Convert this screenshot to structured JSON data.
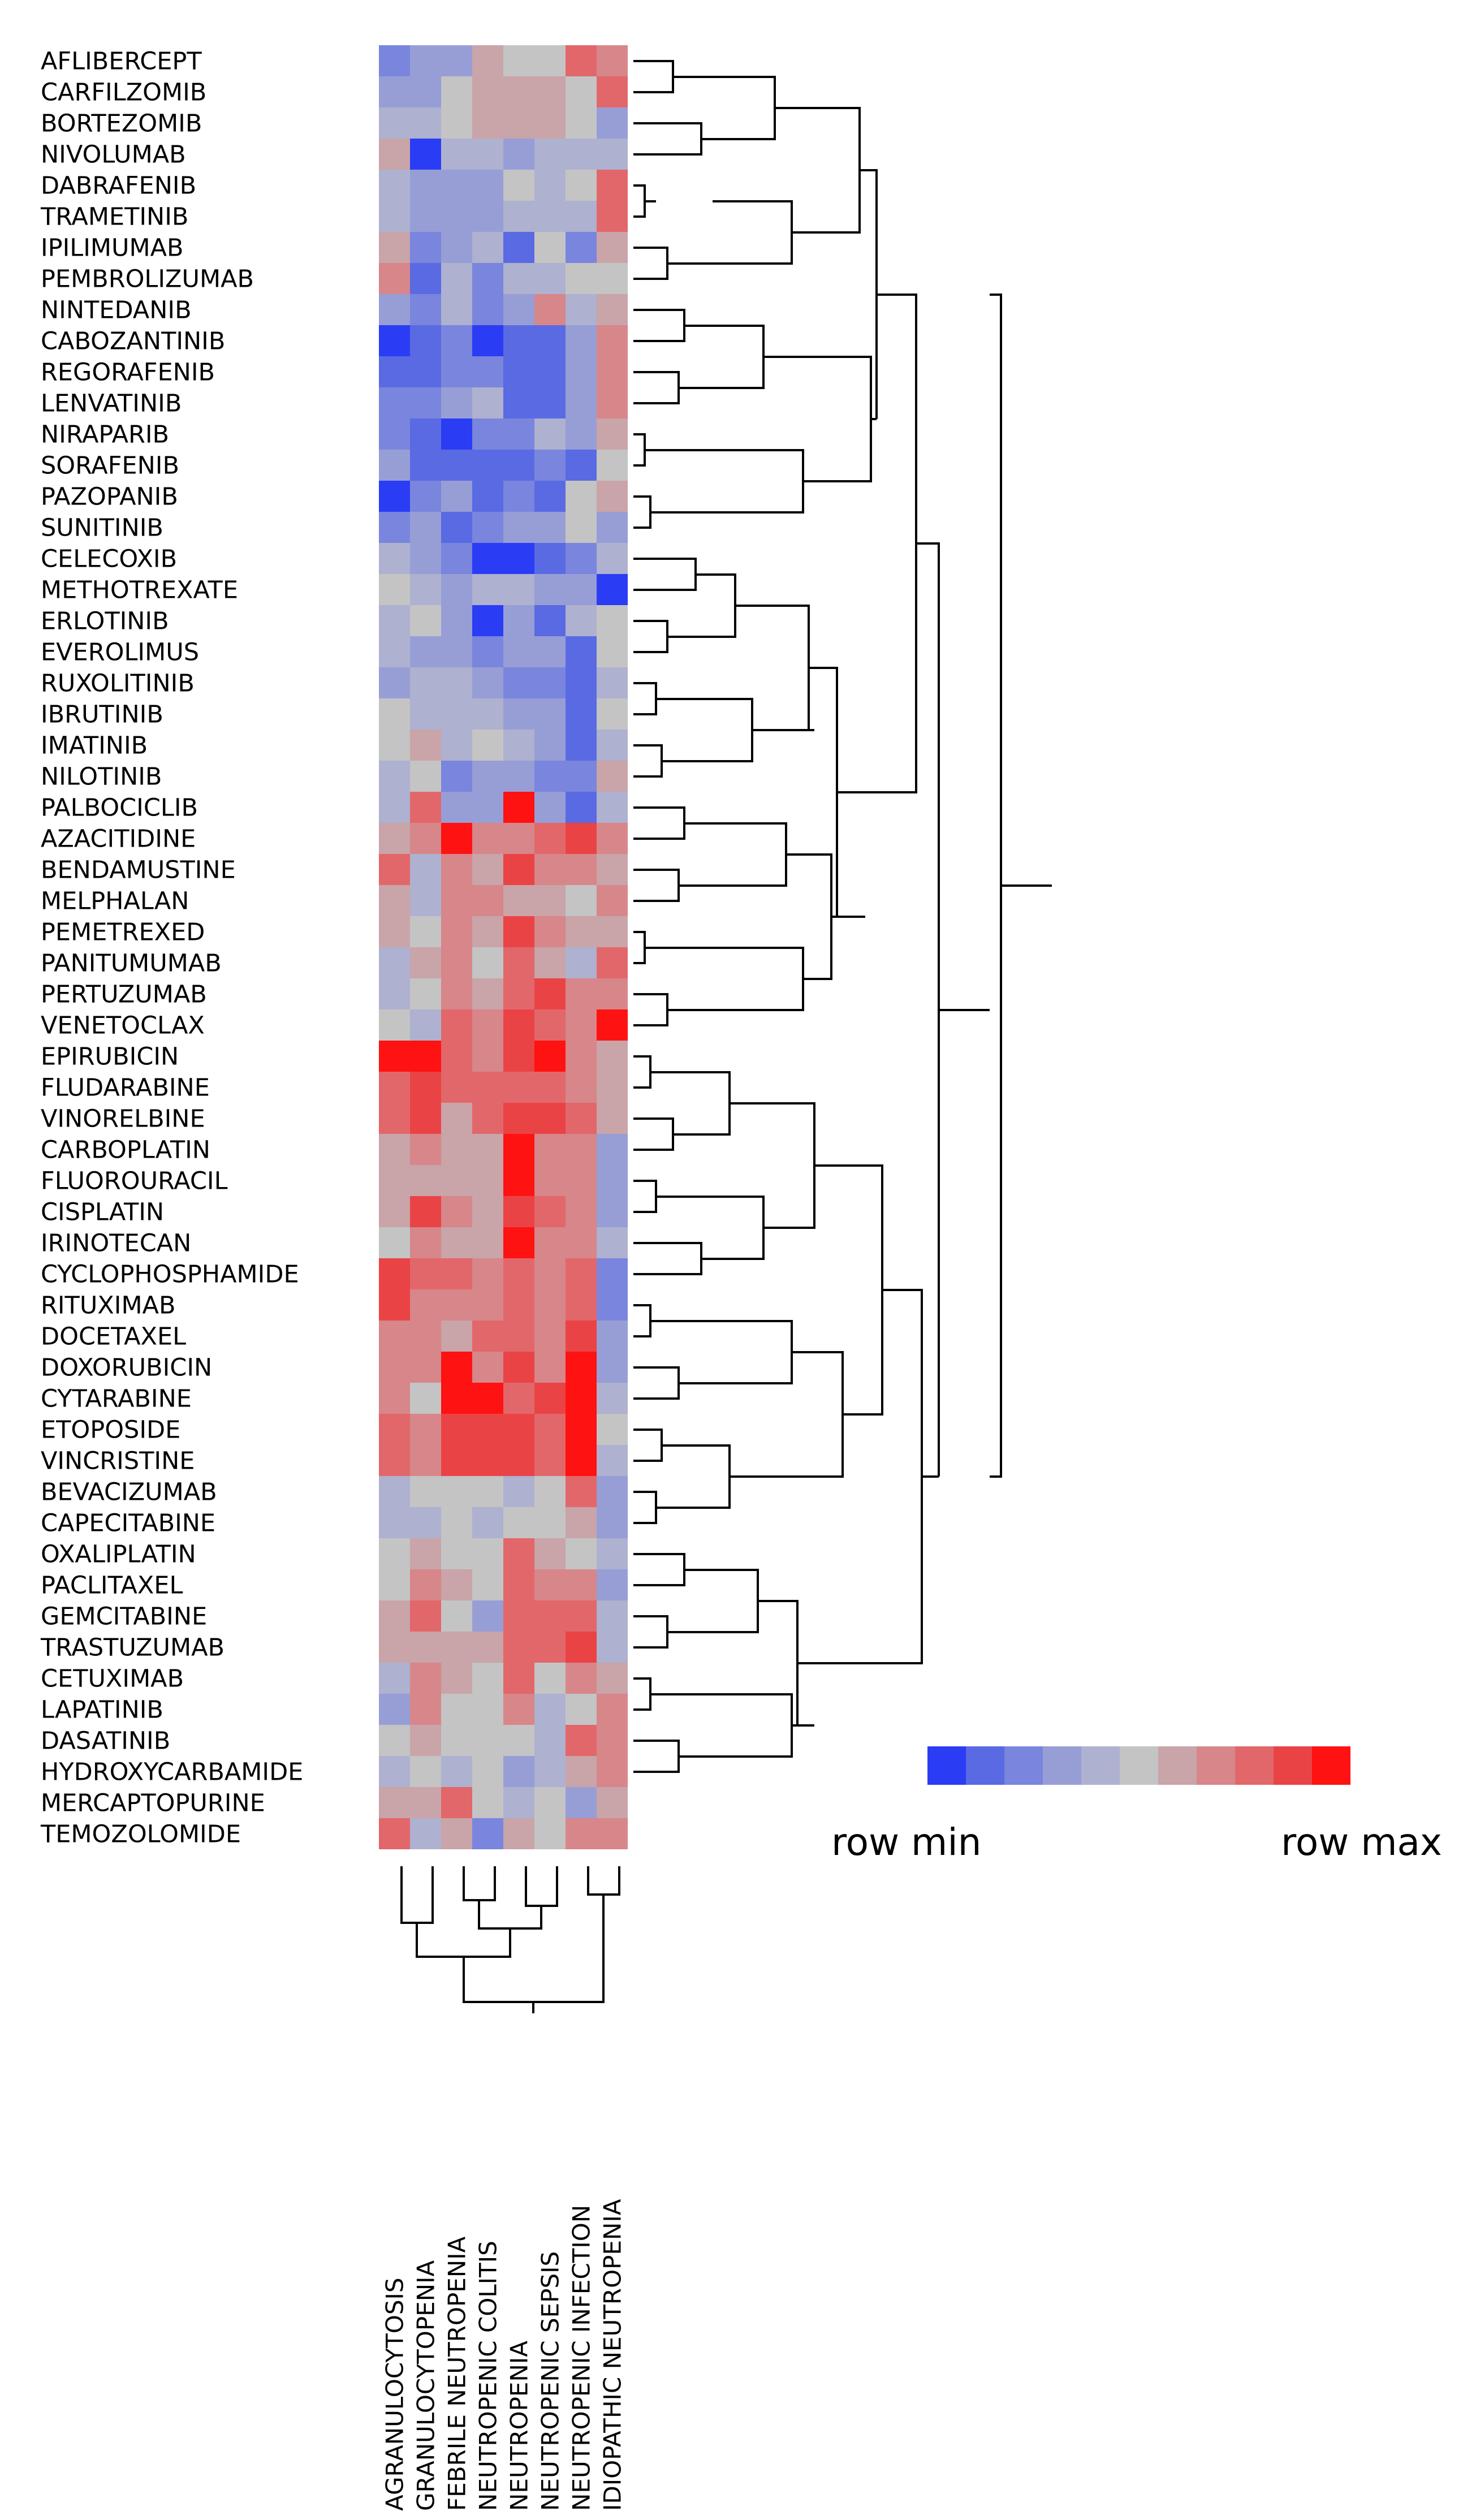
{
  "chart_data": {
    "type": "heatmap",
    "scale": "row-normalized",
    "rows": [
      "AFLIBERCEPT",
      "CARFILZOMIB",
      "BORTEZOMIB",
      "NIVOLUMAB",
      "DABRAFENIB",
      "TRAMETINIB",
      "IPILIMUMAB",
      "PEMBROLIZUMAB",
      "NINTEDANIB",
      "CABOZANTINIB",
      "REGORAFENIB",
      "LENVATINIB",
      "NIRAPARIB",
      "SORAFENIB",
      "PAZOPANIB",
      "SUNITINIB",
      "CELECOXIB",
      "METHOTREXATE",
      "ERLOTINIB",
      "EVEROLIMUS",
      "RUXOLITINIB",
      "IBRUTINIB",
      "IMATINIB",
      "NILOTINIB",
      "PALBOCICLIB",
      "AZACITIDINE",
      "BENDAMUSTINE",
      "MELPHALAN",
      "PEMETREXED",
      "PANITUMUMAB",
      "PERTUZUMAB",
      "VENETOCLAX",
      "EPIRUBICIN",
      "FLUDARABINE",
      "VINORELBINE",
      "CARBOPLATIN",
      "FLUOROURACIL",
      "CISPLATIN",
      "IRINOTECAN",
      "CYCLOPHOSPHAMIDE",
      "RITUXIMAB",
      "DOCETAXEL",
      "DOXORUBICIN",
      "CYTARABINE",
      "ETOPOSIDE",
      "VINCRISTINE",
      "BEVACIZUMAB",
      "CAPECITABINE",
      "OXALIPLATIN",
      "PACLITAXEL",
      "GEMCITABINE",
      "TRASTUZUMAB",
      "CETUXIMAB",
      "LAPATINIB",
      "DASATINIB",
      "HYDROXYCARBAMIDE",
      "MERCAPTOPURINE",
      "TEMOZOLOMIDE"
    ],
    "columns": [
      "AGRANULOCYTOSIS",
      "GRANULOCYTOPENIA",
      "FEBRILE NEUTROPENIA",
      "NEUTROPENIC COLITIS",
      "NEUTROPENIA",
      "NEUTROPENIC SEPSIS",
      "NEUTROPENIC INFECTION",
      "IDIOPATHIC NEUTROPENIA"
    ],
    "values": [
      [
        2,
        3,
        3,
        6,
        5,
        5,
        8,
        7
      ],
      [
        3,
        3,
        5,
        6,
        6,
        6,
        5,
        8
      ],
      [
        4,
        4,
        5,
        6,
        6,
        6,
        5,
        3
      ],
      [
        6,
        0,
        4,
        4,
        3,
        4,
        4,
        4
      ],
      [
        4,
        3,
        3,
        3,
        5,
        4,
        5,
        8
      ],
      [
        4,
        3,
        3,
        3,
        4,
        4,
        4,
        8
      ],
      [
        6,
        2,
        3,
        4,
        1,
        5,
        2,
        6
      ],
      [
        7,
        1,
        4,
        2,
        4,
        4,
        5,
        5
      ],
      [
        3,
        2,
        4,
        2,
        3,
        7,
        4,
        6
      ],
      [
        0,
        1,
        2,
        0,
        1,
        1,
        3,
        7
      ],
      [
        1,
        1,
        2,
        2,
        1,
        1,
        3,
        7
      ],
      [
        2,
        2,
        3,
        4,
        1,
        1,
        3,
        7
      ],
      [
        2,
        1,
        0,
        2,
        2,
        4,
        3,
        6
      ],
      [
        3,
        1,
        1,
        1,
        1,
        2,
        1,
        5
      ],
      [
        0,
        2,
        3,
        1,
        2,
        1,
        5,
        6
      ],
      [
        2,
        3,
        1,
        2,
        3,
        3,
        5,
        3
      ],
      [
        4,
        3,
        2,
        0,
        0,
        1,
        2,
        4
      ],
      [
        5,
        4,
        3,
        4,
        4,
        3,
        3,
        0
      ],
      [
        4,
        5,
        3,
        0,
        3,
        1,
        4,
        5
      ],
      [
        4,
        3,
        3,
        2,
        3,
        3,
        1,
        5
      ],
      [
        3,
        4,
        4,
        3,
        2,
        2,
        1,
        4
      ],
      [
        5,
        4,
        4,
        4,
        3,
        3,
        1,
        5
      ],
      [
        5,
        6,
        4,
        5,
        4,
        3,
        1,
        4
      ],
      [
        4,
        5,
        2,
        3,
        3,
        2,
        2,
        6
      ],
      [
        4,
        8,
        3,
        3,
        10,
        3,
        1,
        4
      ],
      [
        6,
        7,
        10,
        7,
        7,
        8,
        9,
        7
      ],
      [
        8,
        4,
        7,
        6,
        9,
        7,
        7,
        6
      ],
      [
        6,
        4,
        7,
        7,
        6,
        6,
        5,
        7
      ],
      [
        6,
        5,
        7,
        6,
        9,
        7,
        6,
        6
      ],
      [
        4,
        6,
        7,
        5,
        8,
        6,
        4,
        8
      ],
      [
        4,
        5,
        7,
        6,
        8,
        9,
        7,
        7
      ],
      [
        5,
        4,
        8,
        7,
        9,
        8,
        7,
        10
      ],
      [
        10,
        10,
        8,
        7,
        9,
        10,
        7,
        6
      ],
      [
        8,
        9,
        8,
        8,
        8,
        8,
        7,
        6
      ],
      [
        8,
        9,
        6,
        8,
        9,
        9,
        8,
        6
      ],
      [
        6,
        7,
        6,
        6,
        10,
        7,
        7,
        3
      ],
      [
        6,
        6,
        6,
        6,
        10,
        7,
        7,
        3
      ],
      [
        6,
        9,
        7,
        6,
        9,
        8,
        7,
        3
      ],
      [
        5,
        7,
        6,
        6,
        10,
        7,
        7,
        4
      ],
      [
        9,
        8,
        8,
        7,
        8,
        7,
        8,
        2
      ],
      [
        9,
        7,
        7,
        7,
        8,
        7,
        8,
        2
      ],
      [
        7,
        7,
        6,
        8,
        8,
        7,
        9,
        3
      ],
      [
        7,
        7,
        10,
        7,
        9,
        7,
        10,
        3
      ],
      [
        7,
        5,
        10,
        10,
        8,
        9,
        10,
        4
      ],
      [
        8,
        7,
        9,
        9,
        9,
        8,
        10,
        5
      ],
      [
        8,
        7,
        9,
        9,
        9,
        8,
        10,
        4
      ],
      [
        4,
        5,
        5,
        5,
        4,
        5,
        8,
        3
      ],
      [
        4,
        4,
        5,
        4,
        5,
        5,
        6,
        3
      ],
      [
        5,
        6,
        5,
        5,
        8,
        6,
        5,
        4
      ],
      [
        5,
        7,
        6,
        5,
        8,
        7,
        7,
        3
      ],
      [
        6,
        8,
        5,
        3,
        8,
        8,
        8,
        4
      ],
      [
        6,
        6,
        6,
        6,
        8,
        8,
        9,
        4
      ],
      [
        4,
        7,
        6,
        5,
        8,
        5,
        7,
        6
      ],
      [
        3,
        7,
        5,
        5,
        7,
        4,
        5,
        7
      ],
      [
        5,
        6,
        5,
        5,
        5,
        4,
        8,
        7
      ],
      [
        4,
        5,
        4,
        5,
        3,
        4,
        6,
        7
      ],
      [
        6,
        6,
        8,
        5,
        4,
        5,
        3,
        6
      ],
      [
        8,
        4,
        6,
        2,
        6,
        5,
        7,
        7
      ]
    ],
    "legend": {
      "min_label": "row min",
      "max_label": "row max",
      "colors": [
        "#2b3cf5",
        "#5a6ae3",
        "#7a85dd",
        "#979ed6",
        "#aeb1cf",
        "#c4c4c4",
        "#c9a4a8",
        "#d7868a",
        "#e2676a",
        "#ea4346",
        "#ff1212"
      ]
    },
    "row_dendrogram": true,
    "column_dendrogram": true
  }
}
